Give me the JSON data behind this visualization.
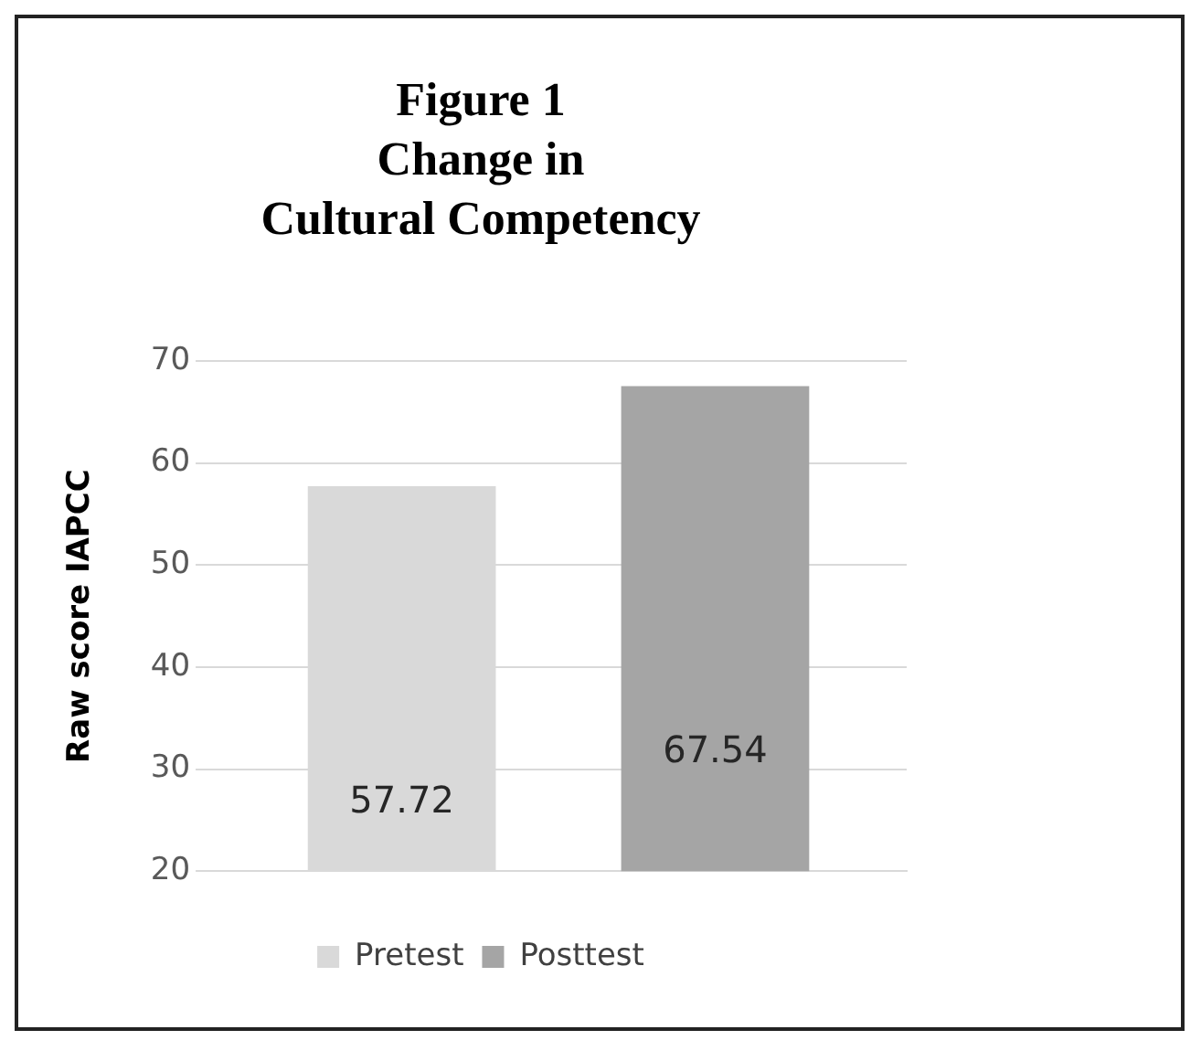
{
  "chart_data": {
    "type": "bar",
    "title": "Figure 1\nChange in\nCultural Competency",
    "ylabel": "Raw score IAPCC",
    "categories": [
      null
    ],
    "series": [
      {
        "name": "Pretest",
        "color": "#d9d9d9",
        "values": [
          57.72
        ]
      },
      {
        "name": "Posttest",
        "color": "#a5a5a5",
        "values": [
          67.54
        ]
      }
    ],
    "ylim": [
      20,
      70
    ],
    "yticks": [
      20,
      30,
      40,
      50,
      60,
      70
    ],
    "grid": "y",
    "legend": "bottom",
    "data_labels": true
  }
}
